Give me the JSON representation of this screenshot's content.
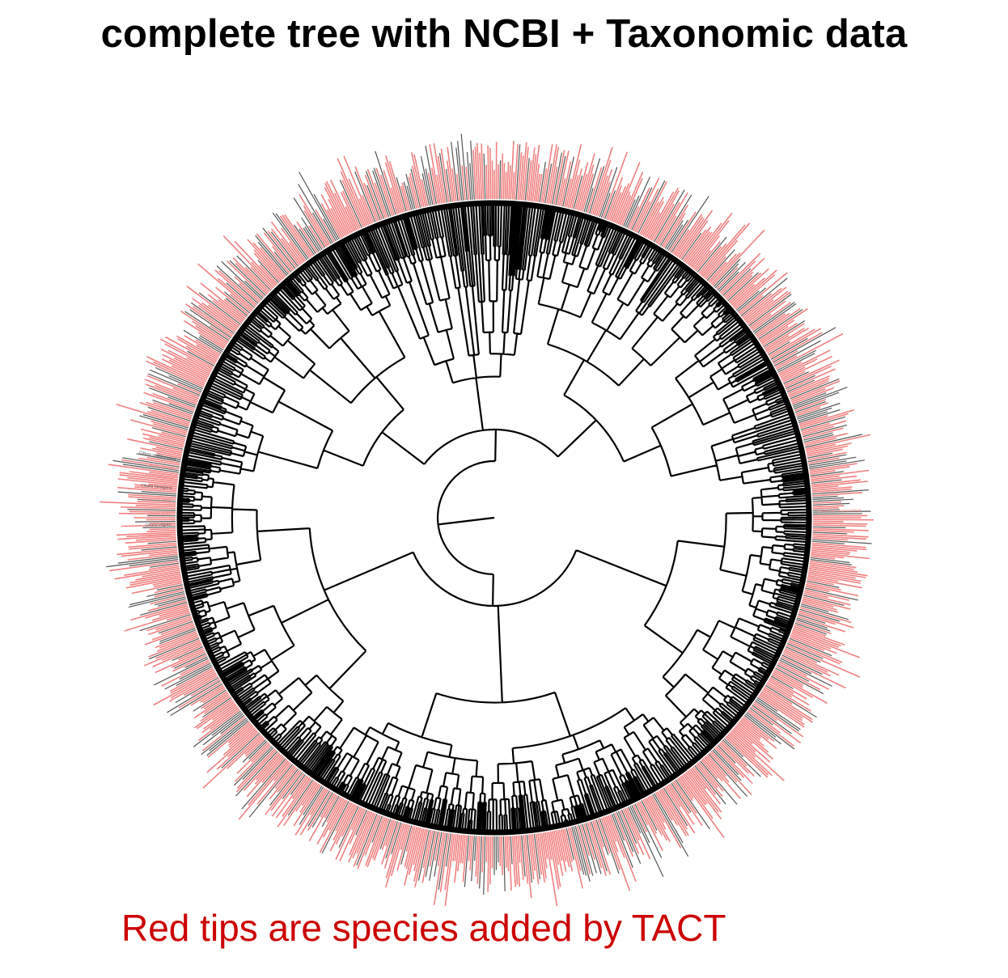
{
  "title": "complete tree with NCBI + Taxonomic data",
  "caption": "Red tips are species added by TACT",
  "figure": {
    "type": "circular-phylogenetic-tree",
    "colors": {
      "branches": "#000000",
      "added_tip_labels": "#f08080",
      "original_tip_labels": "#555555",
      "caption": "#cc0000"
    },
    "visible_tip_labels": [
      "Ciliaria hexagona",
      "Ciliaria edwardsii",
      "Ciliaria cyanella",
      "Ciliaria multipunctata",
      "Ciliaria hexopus",
      "Ciliaria quoyi",
      "Ciliaria virgata",
      "Ciliaria aruensis",
      "Ciliaria sp. trapezoideae"
    ]
  }
}
